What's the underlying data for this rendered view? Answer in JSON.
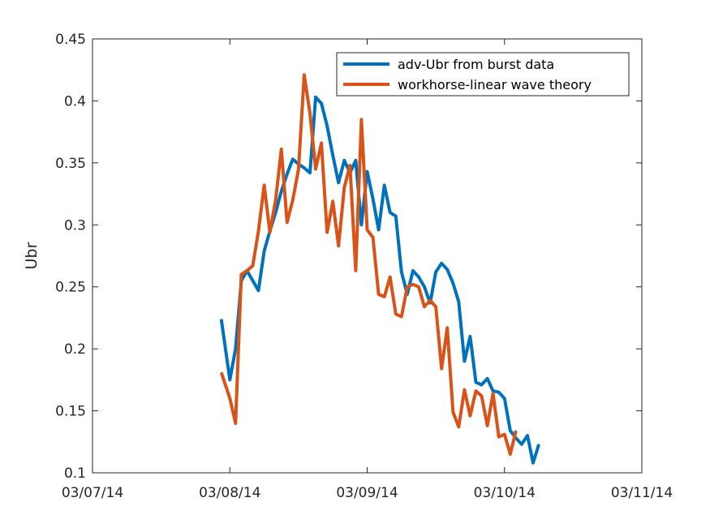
{
  "chart_data": {
    "type": "line",
    "title": "",
    "xlabel": "",
    "ylabel": "Ubr",
    "xlim": [
      "03/07/14",
      "03/11/14"
    ],
    "ylim": [
      0.1,
      0.45
    ],
    "x_ticks": [
      "03/07/14",
      "03/08/14",
      "03/09/14",
      "03/10/14",
      "03/11/14"
    ],
    "y_ticks": [
      "0.1",
      "0.15",
      "0.2",
      "0.25",
      "0.3",
      "0.35",
      "0.4",
      "0.45"
    ],
    "grid": false,
    "legend_position": "top-right",
    "series": [
      {
        "name": "adv-Ubr from burst data",
        "color": "#0072BD",
        "points": [
          [
            "03/07/14 22:30",
            0.224
          ],
          [
            "03/08/14 00:00",
            0.175
          ],
          [
            "03/08/14 01:00",
            0.2
          ],
          [
            "03/08/14 02:00",
            0.255
          ],
          [
            "03/08/14 03:00",
            0.263
          ],
          [
            "03/08/14 04:00",
            0.255
          ],
          [
            "03/08/14 05:00",
            0.247
          ],
          [
            "03/08/14 06:00",
            0.279
          ],
          [
            "03/08/14 07:00",
            0.295
          ],
          [
            "03/08/14 08:00",
            0.31
          ],
          [
            "03/08/14 09:00",
            0.327
          ],
          [
            "03/08/14 10:00",
            0.341
          ],
          [
            "03/08/14 11:00",
            0.353
          ],
          [
            "03/08/14 12:00",
            0.349
          ],
          [
            "03/08/14 13:00",
            0.346
          ],
          [
            "03/08/14 14:00",
            0.342
          ],
          [
            "03/08/14 15:00",
            0.403
          ],
          [
            "03/08/14 16:00",
            0.398
          ],
          [
            "03/08/14 17:00",
            0.38
          ],
          [
            "03/08/14 18:00",
            0.356
          ],
          [
            "03/08/14 19:00",
            0.334
          ],
          [
            "03/08/14 20:00",
            0.352
          ],
          [
            "03/08/14 21:00",
            0.342
          ],
          [
            "03/08/14 22:00",
            0.352
          ],
          [
            "03/08/14 23:00",
            0.3
          ],
          [
            "03/09/14 00:00",
            0.343
          ],
          [
            "03/09/14 01:00",
            0.321
          ],
          [
            "03/09/14 02:00",
            0.296
          ],
          [
            "03/09/14 03:00",
            0.332
          ],
          [
            "03/09/14 04:00",
            0.31
          ],
          [
            "03/09/14 05:00",
            0.307
          ],
          [
            "03/09/14 06:00",
            0.262
          ],
          [
            "03/09/14 07:00",
            0.244
          ],
          [
            "03/09/14 08:00",
            0.263
          ],
          [
            "03/09/14 09:00",
            0.258
          ],
          [
            "03/09/14 10:00",
            0.25
          ],
          [
            "03/09/14 11:00",
            0.237
          ],
          [
            "03/09/14 12:00",
            0.262
          ],
          [
            "03/09/14 13:00",
            0.269
          ],
          [
            "03/09/14 14:00",
            0.264
          ],
          [
            "03/09/14 15:00",
            0.253
          ],
          [
            "03/09/14 16:00",
            0.238
          ],
          [
            "03/09/14 17:00",
            0.19
          ],
          [
            "03/09/14 18:00",
            0.21
          ],
          [
            "03/09/14 19:00",
            0.173
          ],
          [
            "03/09/14 20:00",
            0.171
          ],
          [
            "03/09/14 21:00",
            0.176
          ],
          [
            "03/09/14 22:00",
            0.166
          ],
          [
            "03/09/14 23:00",
            0.165
          ],
          [
            "03/10/14 00:00",
            0.16
          ],
          [
            "03/10/14 01:00",
            0.134
          ],
          [
            "03/10/14 02:00",
            0.128
          ],
          [
            "03/10/14 03:00",
            0.123
          ],
          [
            "03/10/14 04:00",
            0.13
          ],
          [
            "03/10/14 05:00",
            0.108
          ],
          [
            "03/10/14 06:00",
            0.123
          ]
        ]
      },
      {
        "name": "workhorse-linear wave theory",
        "color": "#D95319",
        "points": [
          [
            "03/07/14 22:30",
            0.181
          ],
          [
            "03/08/14 00:00",
            0.16
          ],
          [
            "03/08/14 01:00",
            0.14
          ],
          [
            "03/08/14 02:00",
            0.26
          ],
          [
            "03/08/14 03:00",
            0.263
          ],
          [
            "03/08/14 04:00",
            0.267
          ],
          [
            "03/08/14 05:00",
            0.295
          ],
          [
            "03/08/14 06:00",
            0.332
          ],
          [
            "03/08/14 07:00",
            0.294
          ],
          [
            "03/08/14 08:00",
            0.32
          ],
          [
            "03/08/14 09:00",
            0.361
          ],
          [
            "03/08/14 10:00",
            0.302
          ],
          [
            "03/08/14 11:00",
            0.32
          ],
          [
            "03/08/14 12:00",
            0.345
          ],
          [
            "03/08/14 13:00",
            0.421
          ],
          [
            "03/08/14 14:00",
            0.39
          ],
          [
            "03/08/14 15:00",
            0.345
          ],
          [
            "03/08/14 16:00",
            0.366
          ],
          [
            "03/08/14 17:00",
            0.294
          ],
          [
            "03/08/14 18:00",
            0.319
          ],
          [
            "03/08/14 19:00",
            0.283
          ],
          [
            "03/08/14 20:00",
            0.33
          ],
          [
            "03/08/14 21:00",
            0.348
          ],
          [
            "03/08/14 22:00",
            0.263
          ],
          [
            "03/08/14 23:00",
            0.385
          ],
          [
            "03/09/14 00:00",
            0.296
          ],
          [
            "03/09/14 01:00",
            0.29
          ],
          [
            "03/09/14 02:00",
            0.244
          ],
          [
            "03/09/14 03:00",
            0.242
          ],
          [
            "03/09/14 04:00",
            0.258
          ],
          [
            "03/09/14 05:00",
            0.228
          ],
          [
            "03/09/14 06:00",
            0.226
          ],
          [
            "03/09/14 07:00",
            0.25
          ],
          [
            "03/09/14 08:00",
            0.252
          ],
          [
            "03/09/14 09:00",
            0.25
          ],
          [
            "03/09/14 10:00",
            0.234
          ],
          [
            "03/09/14 11:00",
            0.239
          ],
          [
            "03/09/14 12:00",
            0.234
          ],
          [
            "03/09/14 13:00",
            0.184
          ],
          [
            "03/09/14 14:00",
            0.217
          ],
          [
            "03/09/14 15:00",
            0.149
          ],
          [
            "03/09/14 16:00",
            0.137
          ],
          [
            "03/09/14 17:00",
            0.167
          ],
          [
            "03/09/14 18:00",
            0.146
          ],
          [
            "03/09/14 19:00",
            0.166
          ],
          [
            "03/09/14 20:00",
            0.162
          ],
          [
            "03/09/14 21:00",
            0.138
          ],
          [
            "03/09/14 22:00",
            0.164
          ],
          [
            "03/09/14 23:00",
            0.129
          ],
          [
            "03/10/14 00:00",
            0.131
          ],
          [
            "03/10/14 01:00",
            0.115
          ],
          [
            "03/10/14 02:00",
            0.134
          ]
        ]
      }
    ]
  }
}
